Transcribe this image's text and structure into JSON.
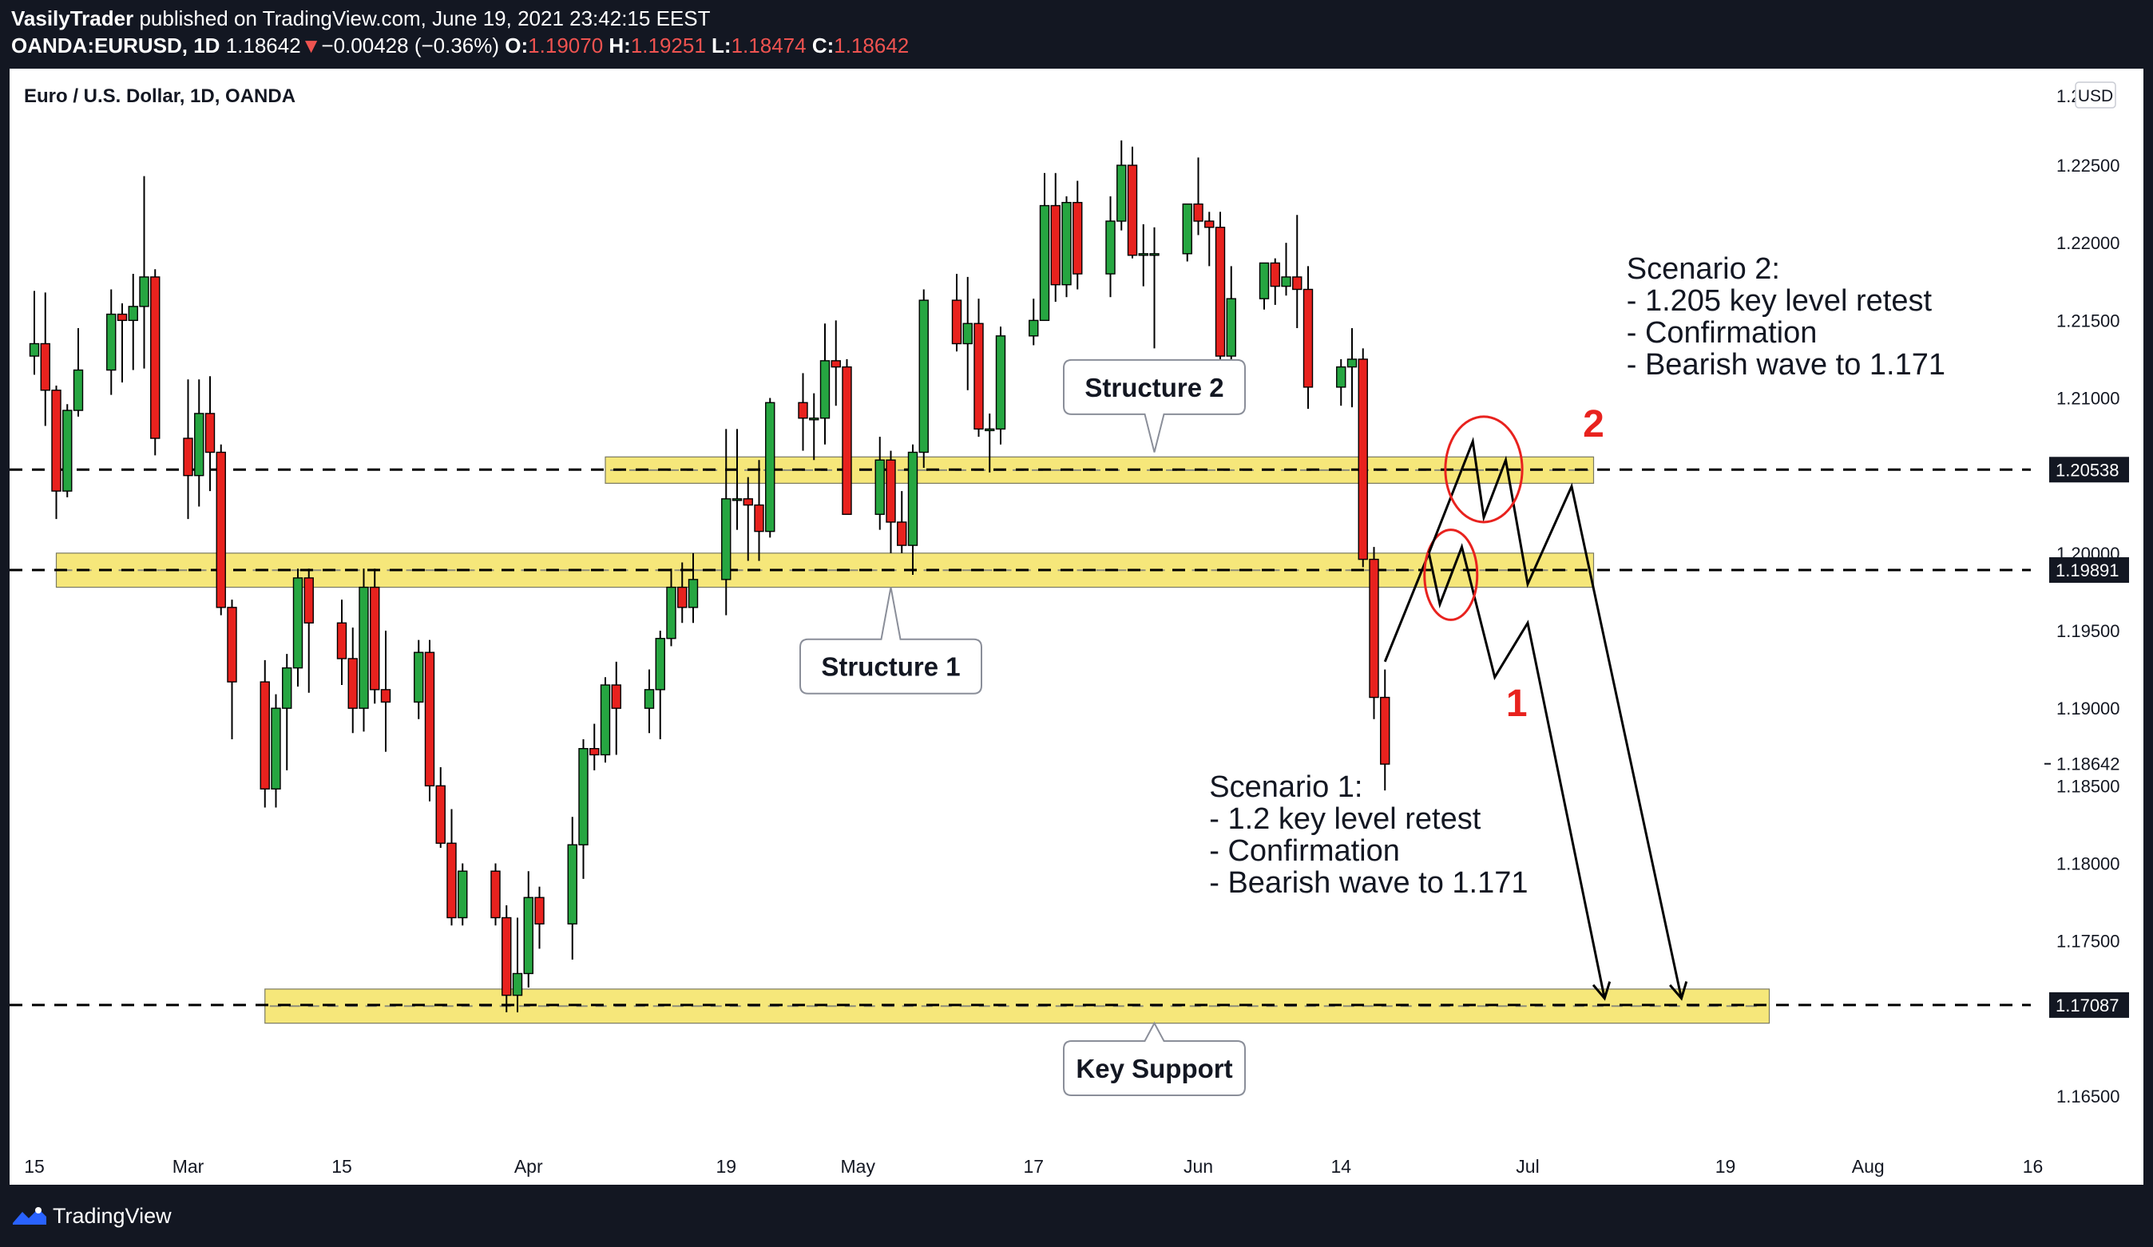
{
  "header": {
    "author": "VasilyTrader",
    "published_text": " published on TradingView.com, June 19, 2021 23:42:15 EEST",
    "symbol": "OANDA:EURUSD, 1D",
    "last": "1.18642",
    "change_arrow": "▼",
    "change": "−0.00428 (−0.36%)",
    "o_label": "O:",
    "o_value": "1.19070",
    "h_label": "H:",
    "h_value": "1.19251",
    "l_label": "L:",
    "l_value": "1.18474",
    "c_label": "C:",
    "c_value": "1.18642"
  },
  "footer": {
    "brand": "TradingView"
  },
  "colors": {
    "up": "#26a641",
    "down": "#e8221e",
    "zone": "#f6e77a",
    "background": "#131722"
  },
  "chart_data": {
    "type": "candlestick",
    "title": "Euro / U.S. Dollar, 1D, OANDA",
    "currency_label": "USD",
    "ylim": [
      1.1615,
      1.2285
    ],
    "y_ticks": [
      1.225,
      1.22,
      1.215,
      1.21,
      1.2,
      1.195,
      1.19,
      1.185,
      1.18,
      1.175,
      1.165
    ],
    "x_ticks": [
      "15",
      "Mar",
      "15",
      "Apr",
      "19",
      "May",
      "17",
      "Jun",
      "14",
      "Jul",
      "19",
      "Aug",
      "16"
    ],
    "x_tick_dates": [
      "2021-02-15",
      "2021-03-01",
      "2021-03-15",
      "2021-04-01",
      "2021-04-19",
      "2021-05-01",
      "2021-05-17",
      "2021-06-01",
      "2021-06-14",
      "2021-07-01",
      "2021-07-19",
      "2021-08-01",
      "2021-08-16"
    ],
    "top_tick_label": "1.2",
    "price_labels": [
      {
        "label": "1.20538",
        "value": 1.20538
      },
      {
        "label": "1.19891",
        "value": 1.19891
      },
      {
        "label": "1.17087",
        "value": 1.17087
      }
    ],
    "last_price": {
      "label": "1.18642",
      "value": 1.18642
    },
    "candles": [
      {
        "date": "2021-02-12",
        "o": 1.2134,
        "h": 1.2146,
        "l": 1.2108,
        "c": 1.2127
      },
      {
        "date": "2021-02-15",
        "o": 1.2127,
        "h": 1.2169,
        "l": 1.2115,
        "c": 1.2135
      },
      {
        "date": "2021-02-16",
        "o": 1.2135,
        "h": 1.2168,
        "l": 1.2082,
        "c": 1.2105
      },
      {
        "date": "2021-02-17",
        "o": 1.2105,
        "h": 1.2108,
        "l": 1.2022,
        "c": 1.204
      },
      {
        "date": "2021-02-18",
        "o": 1.204,
        "h": 1.2096,
        "l": 1.2036,
        "c": 1.2092
      },
      {
        "date": "2021-02-19",
        "o": 1.2092,
        "h": 1.2145,
        "l": 1.2088,
        "c": 1.2118
      },
      {
        "date": "2021-02-22",
        "o": 1.2118,
        "h": 1.217,
        "l": 1.2102,
        "c": 1.2154
      },
      {
        "date": "2021-02-23",
        "o": 1.2154,
        "h": 1.2161,
        "l": 1.211,
        "c": 1.215
      },
      {
        "date": "2021-02-24",
        "o": 1.215,
        "h": 1.218,
        "l": 1.2118,
        "c": 1.2159
      },
      {
        "date": "2021-02-25",
        "o": 1.2159,
        "h": 1.2243,
        "l": 1.2119,
        "c": 1.2178
      },
      {
        "date": "2021-02-26",
        "o": 1.2178,
        "h": 1.2183,
        "l": 1.2063,
        "c": 1.2074
      },
      {
        "date": "2021-03-01",
        "o": 1.2074,
        "h": 1.2112,
        "l": 1.2022,
        "c": 1.205
      },
      {
        "date": "2021-03-02",
        "o": 1.205,
        "h": 1.2112,
        "l": 1.203,
        "c": 1.209
      },
      {
        "date": "2021-03-03",
        "o": 1.209,
        "h": 1.2114,
        "l": 1.204,
        "c": 1.2065
      },
      {
        "date": "2021-03-04",
        "o": 1.2065,
        "h": 1.207,
        "l": 1.196,
        "c": 1.1965
      },
      {
        "date": "2021-03-05",
        "o": 1.1965,
        "h": 1.197,
        "l": 1.188,
        "c": 1.1917
      },
      {
        "date": "2021-03-08",
        "o": 1.1917,
        "h": 1.1931,
        "l": 1.1836,
        "c": 1.1848
      },
      {
        "date": "2021-03-09",
        "o": 1.1848,
        "h": 1.1909,
        "l": 1.1836,
        "c": 1.19
      },
      {
        "date": "2021-03-10",
        "o": 1.19,
        "h": 1.1935,
        "l": 1.186,
        "c": 1.1926
      },
      {
        "date": "2021-03-11",
        "o": 1.1926,
        "h": 1.199,
        "l": 1.1914,
        "c": 1.1984
      },
      {
        "date": "2021-03-12",
        "o": 1.1984,
        "h": 1.199,
        "l": 1.191,
        "c": 1.1955
      },
      {
        "date": "2021-03-15",
        "o": 1.1955,
        "h": 1.197,
        "l": 1.1915,
        "c": 1.1932
      },
      {
        "date": "2021-03-16",
        "o": 1.1932,
        "h": 1.1952,
        "l": 1.1884,
        "c": 1.19
      },
      {
        "date": "2021-03-17",
        "o": 1.19,
        "h": 1.199,
        "l": 1.1885,
        "c": 1.1978
      },
      {
        "date": "2021-03-18",
        "o": 1.1978,
        "h": 1.199,
        "l": 1.1903,
        "c": 1.1912
      },
      {
        "date": "2021-03-19",
        "o": 1.1912,
        "h": 1.195,
        "l": 1.1872,
        "c": 1.1904
      },
      {
        "date": "2021-03-22",
        "o": 1.1904,
        "h": 1.1944,
        "l": 1.1893,
        "c": 1.1936
      },
      {
        "date": "2021-03-23",
        "o": 1.1936,
        "h": 1.1944,
        "l": 1.184,
        "c": 1.185
      },
      {
        "date": "2021-03-24",
        "o": 1.185,
        "h": 1.1862,
        "l": 1.181,
        "c": 1.1813
      },
      {
        "date": "2021-03-25",
        "o": 1.1813,
        "h": 1.1835,
        "l": 1.176,
        "c": 1.1765
      },
      {
        "date": "2021-03-26",
        "o": 1.1765,
        "h": 1.18,
        "l": 1.176,
        "c": 1.1795
      },
      {
        "date": "2021-03-29",
        "o": 1.1795,
        "h": 1.18,
        "l": 1.176,
        "c": 1.1765
      },
      {
        "date": "2021-03-30",
        "o": 1.1765,
        "h": 1.1773,
        "l": 1.1704,
        "c": 1.1715
      },
      {
        "date": "2021-03-31",
        "o": 1.1715,
        "h": 1.1765,
        "l": 1.1704,
        "c": 1.1729
      },
      {
        "date": "2021-04-01",
        "o": 1.1729,
        "h": 1.1795,
        "l": 1.172,
        "c": 1.1778
      },
      {
        "date": "2021-04-02",
        "o": 1.1778,
        "h": 1.1785,
        "l": 1.1745,
        "c": 1.1761
      },
      {
        "date": "2021-04-05",
        "o": 1.1761,
        "h": 1.183,
        "l": 1.1738,
        "c": 1.1812
      },
      {
        "date": "2021-04-06",
        "o": 1.1812,
        "h": 1.188,
        "l": 1.179,
        "c": 1.1874
      },
      {
        "date": "2021-04-07",
        "o": 1.1874,
        "h": 1.189,
        "l": 1.186,
        "c": 1.187
      },
      {
        "date": "2021-04-08",
        "o": 1.187,
        "h": 1.192,
        "l": 1.1865,
        "c": 1.1915
      },
      {
        "date": "2021-04-09",
        "o": 1.1915,
        "h": 1.193,
        "l": 1.187,
        "c": 1.19
      },
      {
        "date": "2021-04-12",
        "o": 1.19,
        "h": 1.1925,
        "l": 1.1884,
        "c": 1.1912
      },
      {
        "date": "2021-04-13",
        "o": 1.1912,
        "h": 1.195,
        "l": 1.188,
        "c": 1.1945
      },
      {
        "date": "2021-04-14",
        "o": 1.1945,
        "h": 1.199,
        "l": 1.194,
        "c": 1.1978
      },
      {
        "date": "2021-04-15",
        "o": 1.1978,
        "h": 1.1994,
        "l": 1.1955,
        "c": 1.1965
      },
      {
        "date": "2021-04-16",
        "o": 1.1965,
        "h": 1.2,
        "l": 1.1955,
        "c": 1.1983
      },
      {
        "date": "2021-04-19",
        "o": 1.1983,
        "h": 1.208,
        "l": 1.196,
        "c": 1.2035
      },
      {
        "date": "2021-04-20",
        "o": 1.2035,
        "h": 1.208,
        "l": 1.2015,
        "c": 1.2035
      },
      {
        "date": "2021-04-21",
        "o": 1.2035,
        "h": 1.2049,
        "l": 1.1995,
        "c": 1.2031
      },
      {
        "date": "2021-04-22",
        "o": 1.2031,
        "h": 1.206,
        "l": 1.1995,
        "c": 1.2014
      },
      {
        "date": "2021-04-23",
        "o": 1.2014,
        "h": 1.21,
        "l": 1.201,
        "c": 1.2097
      },
      {
        "date": "2021-04-26",
        "o": 1.2097,
        "h": 1.2116,
        "l": 1.2066,
        "c": 1.2087
      },
      {
        "date": "2021-04-27",
        "o": 1.2087,
        "h": 1.2103,
        "l": 1.206,
        "c": 1.2087
      },
      {
        "date": "2021-04-28",
        "o": 1.2087,
        "h": 1.2148,
        "l": 1.207,
        "c": 1.2124
      },
      {
        "date": "2021-04-29",
        "o": 1.2124,
        "h": 1.215,
        "l": 1.2095,
        "c": 1.212
      },
      {
        "date": "2021-04-30",
        "o": 1.212,
        "h": 1.2125,
        "l": 1.2025,
        "c": 1.2025
      },
      {
        "date": "2021-05-03",
        "o": 1.2025,
        "h": 1.2075,
        "l": 1.2015,
        "c": 1.206
      },
      {
        "date": "2021-05-04",
        "o": 1.206,
        "h": 1.2066,
        "l": 1.2,
        "c": 1.202
      },
      {
        "date": "2021-05-05",
        "o": 1.202,
        "h": 1.204,
        "l": 1.2,
        "c": 1.2005
      },
      {
        "date": "2021-05-06",
        "o": 1.2005,
        "h": 1.207,
        "l": 1.1986,
        "c": 1.2065
      },
      {
        "date": "2021-05-07",
        "o": 1.2065,
        "h": 1.217,
        "l": 1.2055,
        "c": 1.2163
      },
      {
        "date": "2021-05-10",
        "o": 1.2163,
        "h": 1.218,
        "l": 1.213,
        "c": 1.2135
      },
      {
        "date": "2021-05-11",
        "o": 1.2135,
        "h": 1.2178,
        "l": 1.2105,
        "c": 1.2148
      },
      {
        "date": "2021-05-12",
        "o": 1.2148,
        "h": 1.2164,
        "l": 1.2075,
        "c": 1.208
      },
      {
        "date": "2021-05-13",
        "o": 1.208,
        "h": 1.209,
        "l": 1.2052,
        "c": 1.208
      },
      {
        "date": "2021-05-14",
        "o": 1.208,
        "h": 1.2146,
        "l": 1.207,
        "c": 1.214
      },
      {
        "date": "2021-05-17",
        "o": 1.214,
        "h": 1.2164,
        "l": 1.2134,
        "c": 1.215
      },
      {
        "date": "2021-05-18",
        "o": 1.215,
        "h": 1.2245,
        "l": 1.215,
        "c": 1.2224
      },
      {
        "date": "2021-05-19",
        "o": 1.2224,
        "h": 1.2245,
        "l": 1.2162,
        "c": 1.2173
      },
      {
        "date": "2021-05-20",
        "o": 1.2173,
        "h": 1.223,
        "l": 1.2165,
        "c": 1.2226
      },
      {
        "date": "2021-05-21",
        "o": 1.2226,
        "h": 1.224,
        "l": 1.217,
        "c": 1.218
      },
      {
        "date": "2021-05-24",
        "o": 1.218,
        "h": 1.223,
        "l": 1.2165,
        "c": 1.2214
      },
      {
        "date": "2021-05-25",
        "o": 1.2214,
        "h": 1.2266,
        "l": 1.2208,
        "c": 1.225
      },
      {
        "date": "2021-05-26",
        "o": 1.225,
        "h": 1.2262,
        "l": 1.219,
        "c": 1.2192
      },
      {
        "date": "2021-05-27",
        "o": 1.2192,
        "h": 1.2212,
        "l": 1.2172,
        "c": 1.2193
      },
      {
        "date": "2021-05-28",
        "o": 1.2193,
        "h": 1.221,
        "l": 1.2132,
        "c": 1.2193
      },
      {
        "date": "2021-05-31",
        "o": 1.2193,
        "h": 1.2224,
        "l": 1.2188,
        "c": 1.2225
      },
      {
        "date": "2021-06-01",
        "o": 1.2225,
        "h": 1.2255,
        "l": 1.2205,
        "c": 1.2214
      },
      {
        "date": "2021-06-02",
        "o": 1.2214,
        "h": 1.222,
        "l": 1.2185,
        "c": 1.221
      },
      {
        "date": "2021-06-03",
        "o": 1.221,
        "h": 1.222,
        "l": 1.2102,
        "c": 1.2127
      },
      {
        "date": "2021-06-04",
        "o": 1.2127,
        "h": 1.2185,
        "l": 1.2104,
        "c": 1.2164
      },
      {
        "date": "2021-06-07",
        "o": 1.2164,
        "h": 1.2185,
        "l": 1.2157,
        "c": 1.2187
      },
      {
        "date": "2021-06-08",
        "o": 1.2187,
        "h": 1.219,
        "l": 1.216,
        "c": 1.2172
      },
      {
        "date": "2021-06-09",
        "o": 1.2172,
        "h": 1.22,
        "l": 1.2166,
        "c": 1.2178
      },
      {
        "date": "2021-06-10",
        "o": 1.2178,
        "h": 1.2218,
        "l": 1.2145,
        "c": 1.217
      },
      {
        "date": "2021-06-11",
        "o": 1.217,
        "h": 1.2185,
        "l": 1.2093,
        "c": 1.2107
      },
      {
        "date": "2021-06-14",
        "o": 1.2107,
        "h": 1.2125,
        "l": 1.2095,
        "c": 1.212
      },
      {
        "date": "2021-06-15",
        "o": 1.212,
        "h": 1.2145,
        "l": 1.2094,
        "c": 1.2125
      },
      {
        "date": "2021-06-16",
        "o": 1.2125,
        "h": 1.2132,
        "l": 1.1991,
        "c": 1.1996
      },
      {
        "date": "2021-06-17",
        "o": 1.1996,
        "h": 1.2004,
        "l": 1.1893,
        "c": 1.1907
      },
      {
        "date": "2021-06-18",
        "o": 1.1907,
        "h": 1.1925,
        "l": 1.1847,
        "c": 1.1864
      }
    ],
    "zones": [
      {
        "name": "Structure 2",
        "low": 1.2045,
        "high": 1.2062,
        "from": "2021-04-08",
        "to": "2021-07-07"
      },
      {
        "name": "Structure 1",
        "low": 1.1978,
        "high": 1.2,
        "from": "2021-02-17",
        "to": "2021-07-07"
      },
      {
        "name": "Key Support",
        "low": 1.1697,
        "high": 1.1719,
        "from": "2021-03-08",
        "to": "2021-07-23"
      }
    ],
    "levels": [
      1.20538,
      1.19891,
      1.17087
    ],
    "callouts": [
      {
        "text": "Structure 2",
        "date": "2021-05-28",
        "price": 1.2107,
        "pointer_price": 1.2065
      },
      {
        "text": "Structure 1",
        "date": "2021-05-04",
        "price": 1.1927,
        "pointer_price": 1.1978
      },
      {
        "text": "Key Support",
        "date": "2021-05-28",
        "price": 1.1668,
        "pointer_price": 1.1697
      }
    ],
    "scenario_texts": [
      {
        "lines": [
          "Scenario 2:",
          "- 1.205 key level retest",
          "- Confirmation",
          "- Bearish wave to 1.171"
        ],
        "date": "2021-07-10",
        "price": 1.2177
      },
      {
        "lines": [
          "Scenario 1:",
          "- 1.2 key level retest",
          "- Confirmation",
          "- Bearish wave to 1.171"
        ],
        "date": "2021-06-02",
        "price": 1.1843
      }
    ],
    "scenario_paths": [
      {
        "label": "1",
        "label_date": "2021-06-30",
        "label_price": 1.1895,
        "points": [
          [
            "2021-06-18",
            1.193
          ],
          [
            "2021-06-22",
            1.2
          ],
          [
            "2021-06-23",
            1.1967
          ],
          [
            "2021-06-25",
            1.2004
          ],
          [
            "2021-06-28",
            1.192
          ],
          [
            "2021-07-01",
            1.1955
          ],
          [
            "2021-07-08",
            1.1713
          ]
        ],
        "circle": {
          "date": "2021-06-24",
          "price": 1.1986,
          "rx_days": 2.4,
          "ry_price": 0.0029
        }
      },
      {
        "label": "2",
        "label_date": "2021-07-07",
        "label_price": 1.2075,
        "points": [
          [
            "2021-06-22",
            1.2
          ],
          [
            "2021-06-26",
            1.2072
          ],
          [
            "2021-06-27",
            1.2023
          ],
          [
            "2021-06-29",
            1.206
          ],
          [
            "2021-07-01",
            1.198
          ],
          [
            "2021-07-05",
            1.2043
          ],
          [
            "2021-07-15",
            1.1713
          ]
        ],
        "circle": {
          "date": "2021-06-27",
          "price": 1.2054,
          "rx_days": 3.5,
          "ry_price": 0.0034
        }
      }
    ],
    "grid": false
  }
}
